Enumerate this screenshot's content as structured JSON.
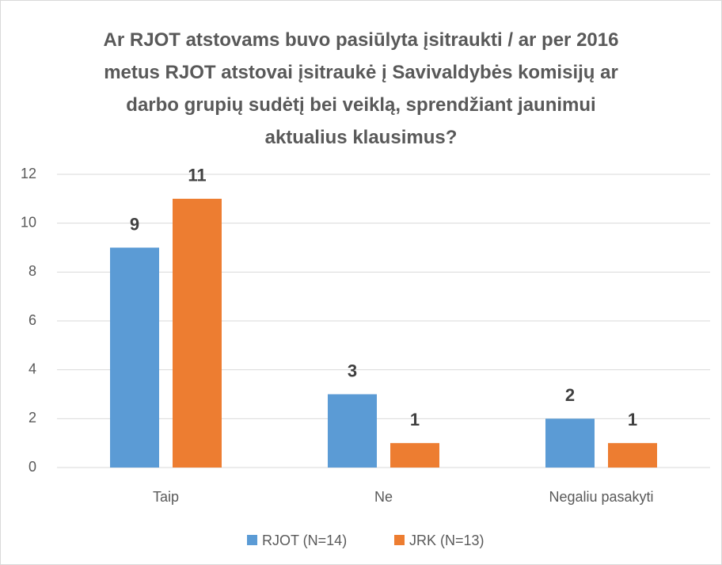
{
  "chart_data": {
    "type": "bar",
    "title": "Ar RJOT atstovams buvo pasiūlyta įsitraukti / ar per 2016 metus RJOT atstovai įsitraukė į Savivaldybės komisijų ar darbo grupių sudėtį bei veiklą, sprendžiant jaunimui aktualius klausimus?",
    "categories": [
      "Taip",
      "Ne",
      "Negaliu pasakyti"
    ],
    "series": [
      {
        "name": "RJOT (N=14)",
        "color": "#5b9bd5",
        "values": [
          9,
          3,
          2
        ]
      },
      {
        "name": "JRK (N=13)",
        "color": "#ed7d31",
        "values": [
          11,
          1,
          1
        ]
      }
    ],
    "ylim": [
      0,
      12
    ],
    "yticks": [
      0,
      2,
      4,
      6,
      8,
      10,
      12
    ],
    "grid": true,
    "legend": "bottom"
  }
}
